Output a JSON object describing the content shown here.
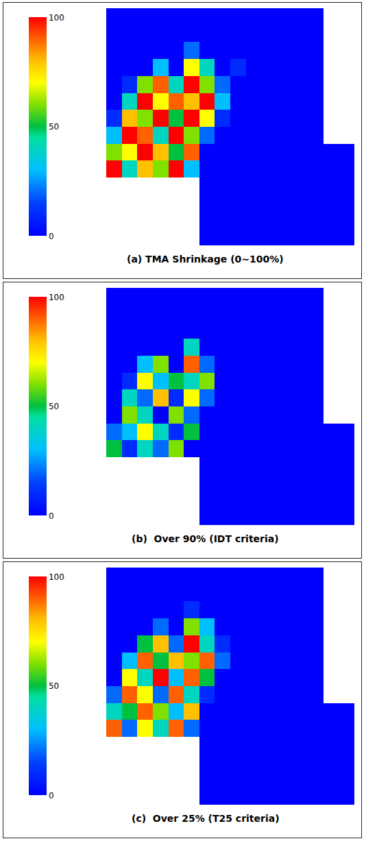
{
  "chart_data": [
    {
      "type": "heatmap",
      "title": "(a) TMA Shrinkage (0~100%)",
      "zlim": [
        0,
        100
      ],
      "zticks": [
        0,
        50,
        100
      ],
      "tick_labels": false,
      "cells": [
        [
          0,
          0,
          0,
          0,
          0,
          0,
          0,
          0,
          0,
          0,
          0,
          0,
          0,
          0,
          null,
          null
        ],
        [
          0,
          0,
          0,
          0,
          0,
          0,
          0,
          0,
          0,
          0,
          0,
          0,
          0,
          0,
          null,
          null
        ],
        [
          0,
          0,
          0,
          0,
          0,
          20,
          0,
          0,
          0,
          0,
          0,
          0,
          0,
          0,
          null,
          null
        ],
        [
          0,
          0,
          0,
          30,
          0,
          70,
          40,
          0,
          10,
          0,
          0,
          0,
          0,
          0,
          null,
          null
        ],
        [
          0,
          10,
          60,
          90,
          40,
          100,
          60,
          20,
          0,
          0,
          0,
          0,
          0,
          0,
          null,
          null
        ],
        [
          0,
          40,
          100,
          70,
          90,
          80,
          100,
          30,
          0,
          0,
          0,
          0,
          0,
          0,
          null,
          null
        ],
        [
          10,
          80,
          60,
          100,
          50,
          100,
          70,
          10,
          0,
          0,
          0,
          0,
          0,
          0,
          null,
          null
        ],
        [
          30,
          100,
          90,
          40,
          100,
          60,
          20,
          0,
          0,
          0,
          0,
          0,
          0,
          0,
          null,
          null
        ],
        [
          60,
          70,
          100,
          80,
          50,
          90,
          0,
          0,
          0,
          0,
          0,
          0,
          0,
          0,
          0,
          0
        ],
        [
          100,
          40,
          80,
          60,
          100,
          30,
          0,
          0,
          0,
          0,
          0,
          0,
          0,
          0,
          0,
          0
        ],
        [
          null,
          null,
          null,
          null,
          null,
          null,
          0,
          0,
          0,
          0,
          0,
          0,
          0,
          0,
          0,
          0
        ],
        [
          null,
          null,
          null,
          null,
          null,
          null,
          0,
          0,
          0,
          0,
          0,
          0,
          0,
          0,
          0,
          0
        ],
        [
          null,
          null,
          null,
          null,
          null,
          null,
          0,
          0,
          0,
          0,
          0,
          0,
          0,
          0,
          0,
          0
        ],
        [
          null,
          null,
          null,
          null,
          null,
          null,
          0,
          0,
          0,
          0,
          0,
          0,
          0,
          0,
          0,
          0
        ]
      ]
    },
    {
      "type": "heatmap",
      "title": "(b)  Over 90% (IDT criteria)",
      "zlim": [
        0,
        100
      ],
      "zticks": [
        0,
        50,
        100
      ],
      "tick_labels": false,
      "cells": [
        [
          0,
          0,
          0,
          0,
          0,
          0,
          0,
          0,
          0,
          0,
          0,
          0,
          0,
          0,
          null,
          null
        ],
        [
          0,
          0,
          0,
          0,
          0,
          0,
          0,
          0,
          0,
          0,
          0,
          0,
          0,
          0,
          null,
          null
        ],
        [
          0,
          0,
          0,
          0,
          0,
          0,
          0,
          0,
          0,
          0,
          0,
          0,
          0,
          0,
          null,
          null
        ],
        [
          0,
          0,
          0,
          0,
          0,
          40,
          0,
          0,
          0,
          0,
          0,
          0,
          0,
          0,
          null,
          null
        ],
        [
          0,
          0,
          30,
          60,
          0,
          90,
          20,
          0,
          0,
          0,
          0,
          0,
          0,
          0,
          null,
          null
        ],
        [
          0,
          10,
          70,
          30,
          50,
          40,
          60,
          0,
          0,
          0,
          0,
          0,
          0,
          0,
          null,
          null
        ],
        [
          0,
          40,
          20,
          80,
          10,
          70,
          20,
          0,
          0,
          0,
          0,
          0,
          0,
          0,
          null,
          null
        ],
        [
          0,
          60,
          40,
          0,
          60,
          20,
          0,
          0,
          0,
          0,
          0,
          0,
          0,
          0,
          null,
          null
        ],
        [
          20,
          30,
          70,
          40,
          10,
          50,
          0,
          0,
          0,
          0,
          0,
          0,
          0,
          0,
          0,
          0
        ],
        [
          50,
          10,
          40,
          20,
          60,
          0,
          0,
          0,
          0,
          0,
          0,
          0,
          0,
          0,
          0,
          0
        ],
        [
          null,
          null,
          null,
          null,
          null,
          null,
          0,
          0,
          0,
          0,
          0,
          0,
          0,
          0,
          0,
          0
        ],
        [
          null,
          null,
          null,
          null,
          null,
          null,
          0,
          0,
          0,
          0,
          0,
          0,
          0,
          0,
          0,
          0
        ],
        [
          null,
          null,
          null,
          null,
          null,
          null,
          0,
          0,
          0,
          0,
          0,
          0,
          0,
          0,
          0,
          0
        ],
        [
          null,
          null,
          null,
          null,
          null,
          null,
          0,
          0,
          0,
          0,
          0,
          0,
          0,
          0,
          0,
          0
        ]
      ]
    },
    {
      "type": "heatmap",
      "title": "(c)  Over 25% (T25 criteria)",
      "zlim": [
        0,
        100
      ],
      "zticks": [
        0,
        50,
        100
      ],
      "tick_labels": false,
      "cells": [
        [
          0,
          0,
          0,
          0,
          0,
          0,
          0,
          0,
          0,
          0,
          0,
          0,
          0,
          0,
          null,
          null
        ],
        [
          0,
          0,
          0,
          0,
          0,
          0,
          0,
          0,
          0,
          0,
          0,
          0,
          0,
          0,
          null,
          null
        ],
        [
          0,
          0,
          0,
          0,
          0,
          10,
          0,
          0,
          0,
          0,
          0,
          0,
          0,
          0,
          null,
          null
        ],
        [
          0,
          0,
          0,
          20,
          0,
          60,
          30,
          0,
          0,
          0,
          0,
          0,
          0,
          0,
          null,
          null
        ],
        [
          0,
          0,
          50,
          80,
          20,
          100,
          40,
          10,
          0,
          0,
          0,
          0,
          0,
          0,
          null,
          null
        ],
        [
          0,
          30,
          90,
          50,
          80,
          60,
          90,
          20,
          0,
          0,
          0,
          0,
          0,
          0,
          null,
          null
        ],
        [
          0,
          70,
          40,
          100,
          30,
          90,
          50,
          0,
          0,
          0,
          0,
          0,
          0,
          0,
          null,
          null
        ],
        [
          20,
          90,
          70,
          20,
          90,
          40,
          10,
          0,
          0,
          0,
          0,
          0,
          0,
          0,
          null,
          null
        ],
        [
          40,
          50,
          90,
          60,
          30,
          80,
          0,
          0,
          0,
          0,
          0,
          0,
          0,
          0,
          0,
          0
        ],
        [
          90,
          20,
          70,
          40,
          90,
          20,
          0,
          0,
          0,
          0,
          0,
          0,
          0,
          0,
          0,
          0
        ],
        [
          null,
          null,
          null,
          null,
          null,
          null,
          0,
          0,
          0,
          0,
          0,
          0,
          0,
          0,
          0,
          0
        ],
        [
          null,
          null,
          null,
          null,
          null,
          null,
          0,
          0,
          0,
          0,
          0,
          0,
          0,
          0,
          0,
          0
        ],
        [
          null,
          null,
          null,
          null,
          null,
          null,
          0,
          0,
          0,
          0,
          0,
          0,
          0,
          0,
          0,
          0
        ],
        [
          null,
          null,
          null,
          null,
          null,
          null,
          0,
          0,
          0,
          0,
          0,
          0,
          0,
          0,
          0,
          0
        ]
      ]
    }
  ]
}
